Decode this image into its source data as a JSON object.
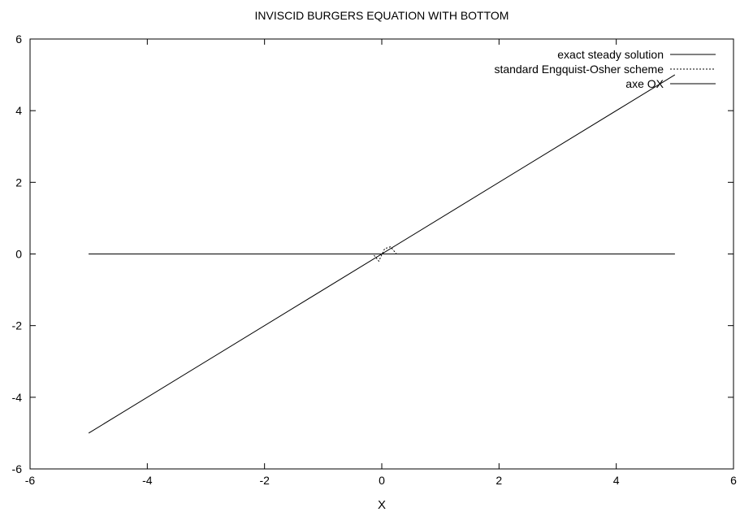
{
  "chart_data": {
    "type": "line",
    "title": "INVISCID BURGERS EQUATION WITH BOTTOM",
    "xlabel": "X",
    "ylabel": "",
    "xlim": [
      -6,
      6
    ],
    "ylim": [
      -6,
      6
    ],
    "xticks": [
      -6,
      -4,
      -2,
      0,
      2,
      4,
      6
    ],
    "yticks": [
      -6,
      -4,
      -2,
      0,
      2,
      4,
      6
    ],
    "grid": false,
    "legend_position": "top-right",
    "series": [
      {
        "name": "exact steady solution",
        "style": "solid",
        "color": "#000000",
        "x": [
          -5,
          5
        ],
        "y": [
          -5,
          5
        ]
      },
      {
        "name": "standard Engquist-Osher scheme",
        "style": "dotted",
        "color": "#000000",
        "x": [
          -5,
          -0.15,
          -0.05,
          0.05,
          0.15,
          0.25,
          5
        ],
        "y": [
          0,
          0,
          -0.2,
          0.15,
          0.2,
          0,
          0
        ]
      },
      {
        "name": "axe OX",
        "style": "solid",
        "color": "#000000",
        "x": [
          -5,
          5
        ],
        "y": [
          0,
          0
        ]
      }
    ]
  }
}
